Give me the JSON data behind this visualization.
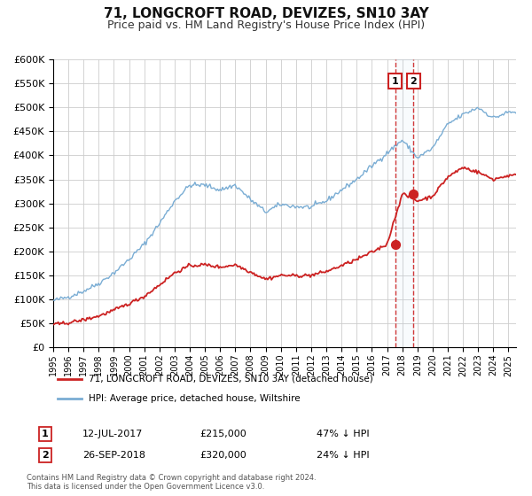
{
  "title": "71, LONGCROFT ROAD, DEVIZES, SN10 3AY",
  "subtitle": "Price paid vs. HM Land Registry's House Price Index (HPI)",
  "ylim": [
    0,
    600000
  ],
  "yticks": [
    0,
    50000,
    100000,
    150000,
    200000,
    250000,
    300000,
    350000,
    400000,
    450000,
    500000,
    550000,
    600000
  ],
  "xlim_start": 1995.0,
  "xlim_end": 2025.5,
  "hpi_color": "#7aadd4",
  "property_color": "#cc2222",
  "transaction1_date": 2017.53,
  "transaction1_price": 215000,
  "transaction2_date": 2018.74,
  "transaction2_price": 320000,
  "legend_property": "71, LONGCROFT ROAD, DEVIZES, SN10 3AY (detached house)",
  "legend_hpi": "HPI: Average price, detached house, Wiltshire",
  "annotation1_date": "12-JUL-2017",
  "annotation1_price": "£215,000",
  "annotation1_pct": "47% ↓ HPI",
  "annotation2_date": "26-SEP-2018",
  "annotation2_price": "£320,000",
  "annotation2_pct": "24% ↓ HPI",
  "footnote1": "Contains HM Land Registry data © Crown copyright and database right 2024.",
  "footnote2": "This data is licensed under the Open Government Licence v3.0.",
  "background_color": "#ffffff",
  "grid_color": "#cccccc"
}
